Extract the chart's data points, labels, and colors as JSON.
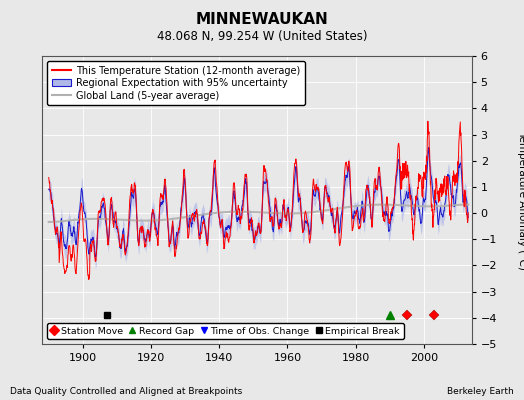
{
  "title": "MINNEWAUKAN",
  "subtitle": "48.068 N, 99.254 W (United States)",
  "ylabel": "Temperature Anomaly (°C)",
  "xlabel_note": "Data Quality Controlled and Aligned at Breakpoints",
  "credit": "Berkeley Earth",
  "xlim": [
    1888,
    2014
  ],
  "ylim": [
    -5,
    6
  ],
  "yticks": [
    -5,
    -4,
    -3,
    -2,
    -1,
    0,
    1,
    2,
    3,
    4,
    5,
    6
  ],
  "xticks": [
    1900,
    1920,
    1940,
    1960,
    1980,
    2000
  ],
  "bg_color": "#e8e8e8",
  "plot_bg": "#e8e8e8",
  "station_move_years": [
    1995,
    2003
  ],
  "record_gap_years": [
    1990
  ],
  "time_obs_change_years": [],
  "empirical_break_years": [
    1907
  ],
  "marker_y": -3.9,
  "seed": 17
}
